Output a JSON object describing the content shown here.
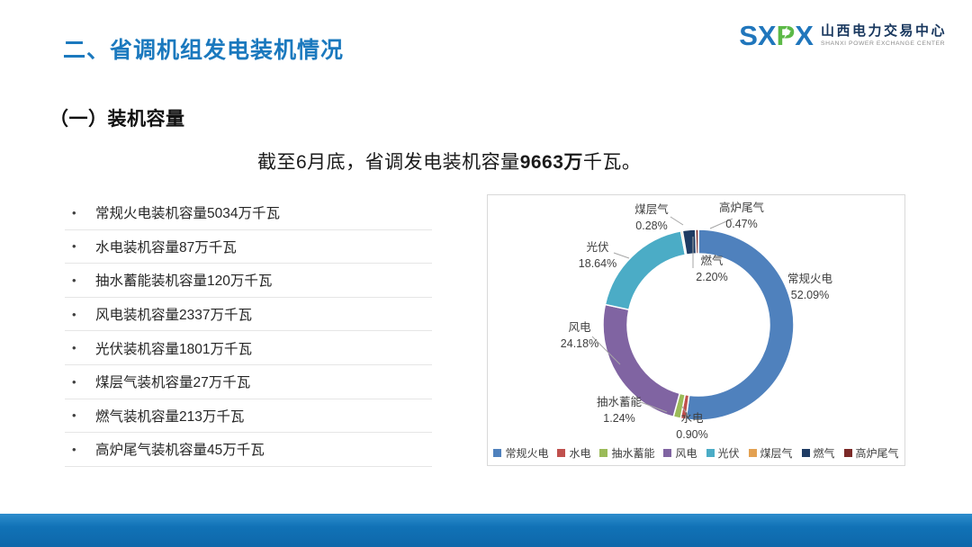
{
  "header": {
    "title": "二、省调机组发电装机情况",
    "logo": {
      "letters_pre": "SX",
      "letter_green": "P",
      "letters_post": "X",
      "cn_name": "山西电力交易中心",
      "en_name": "SHANXI POWER EXCHANGE CENTER"
    }
  },
  "section": {
    "heading": "（一）装机容量"
  },
  "lead": {
    "prefix": "截至6月底，省调发电装机容量",
    "highlight": "9663万",
    "suffix": "千瓦。"
  },
  "bullets": [
    "常规火电装机容量5034万千瓦",
    "水电装机容量87万千瓦",
    "抽水蓄能装机容量120万千瓦",
    "风电装机容量2337万千瓦",
    "光伏装机容量1801万千瓦",
    "煤层气装机容量27万千瓦",
    "燃气装机容量213万千瓦",
    "高炉尾气装机容量45万千瓦"
  ],
  "chart_data": {
    "type": "pie",
    "subtype": "doughnut",
    "title": "",
    "categories": [
      "常规火电",
      "水电",
      "抽水蓄能",
      "风电",
      "光伏",
      "煤层气",
      "燃气",
      "高炉尾气"
    ],
    "values": [
      52.09,
      0.9,
      1.24,
      24.18,
      18.64,
      0.28,
      2.2,
      0.47
    ],
    "pct_labels": [
      "52.09%",
      "0.90%",
      "1.24%",
      "24.18%",
      "18.64%",
      "0.28%",
      "2.20%",
      "0.47%"
    ],
    "colors": [
      "#4F81BD",
      "#C0504D",
      "#9BBB59",
      "#8064A2",
      "#4BACC6",
      "#E3A152",
      "#1F3C64",
      "#7B2927"
    ],
    "unit": "%",
    "start_angle_deg": 0,
    "direction": "clockwise",
    "legend_position": "bottom",
    "grid": false
  },
  "theme": {
    "title_blue": "#1b79be",
    "logo_blue": "#2076bc",
    "logo_green": "#5cb947",
    "footer_blue": "#1172b6",
    "panel_border": "#d9d9d9"
  }
}
